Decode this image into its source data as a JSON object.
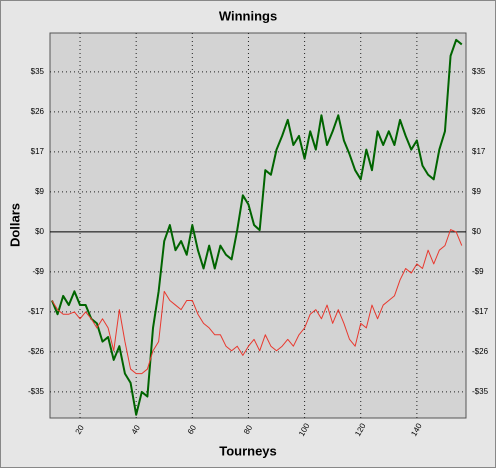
{
  "chart_data": {
    "type": "line",
    "title": "Winnings",
    "xlabel": "Tourneys",
    "ylabel": "Dollars",
    "x": [
      10,
      12,
      14,
      16,
      18,
      20,
      22,
      24,
      26,
      28,
      30,
      32,
      34,
      36,
      38,
      40,
      42,
      44,
      46,
      48,
      50,
      52,
      54,
      56,
      58,
      60,
      62,
      64,
      66,
      68,
      70,
      72,
      74,
      76,
      78,
      80,
      82,
      84,
      86,
      88,
      90,
      92,
      94,
      96,
      98,
      100,
      102,
      104,
      106,
      108,
      110,
      112,
      114,
      116,
      118,
      120,
      122,
      124,
      126,
      128,
      130,
      132,
      134,
      136,
      138,
      140,
      142,
      144,
      146,
      148,
      150,
      152,
      154,
      156
    ],
    "series": [
      {
        "color": "#006400",
        "width": 2,
        "values": [
          -15,
          -18,
          -14,
          -16,
          -13,
          -16,
          -16,
          -19,
          -20,
          -24,
          -23,
          -28,
          -25,
          -31,
          -33,
          -40,
          -35,
          -36,
          -21,
          -13,
          -2,
          1.5,
          -4,
          -2,
          -5,
          1.5,
          -4,
          -8,
          -3,
          -8,
          -3,
          -5,
          -6,
          0.4,
          8,
          6,
          1.5,
          0.4,
          13.5,
          12.5,
          18,
          21,
          24.5,
          19,
          21,
          16,
          22,
          18,
          25.5,
          19,
          22,
          25.5,
          20,
          17,
          13.5,
          11.5,
          18,
          13.5,
          22,
          19,
          22,
          19,
          24.5,
          21,
          18,
          20,
          14.5,
          12.5,
          11.5,
          18,
          22,
          38.5,
          42,
          41
        ]
      },
      {
        "color": "#e8392f",
        "width": 1,
        "values": [
          -15,
          -17,
          -18,
          -18,
          -17.5,
          -19,
          -17.5,
          -19,
          -21,
          -19,
          -21,
          -26,
          -17,
          -24,
          -30,
          -31,
          -31,
          -30,
          -26,
          -24,
          -13,
          -15,
          -16,
          -17,
          -15,
          -15,
          -18,
          -20,
          -21,
          -22.5,
          -22.5,
          -25,
          -26,
          -25,
          -27,
          -25,
          -23.5,
          -26,
          -22.5,
          -25,
          -26,
          -25,
          -23.5,
          -25,
          -22.5,
          -21,
          -18,
          -17,
          -19,
          -16,
          -20,
          -17,
          -20,
          -23.5,
          -25,
          -20,
          -21,
          -16,
          -19,
          -16,
          -15,
          -14,
          -10.5,
          -8,
          -9,
          -7,
          -8,
          -4,
          -7,
          -4,
          -3,
          0.5,
          0,
          -3
        ]
      }
    ],
    "xlim": [
      9.3,
      157.5
    ],
    "ylim": [
      -40.7,
      43.5
    ],
    "xticks": [
      20,
      40,
      60,
      80,
      100,
      120,
      140
    ],
    "yticks": [
      {
        "value": 35,
        "label": "$35"
      },
      {
        "value": 26.25,
        "label": "$26"
      },
      {
        "value": 17.5,
        "label": "$17"
      },
      {
        "value": 8.75,
        "label": "$9"
      },
      {
        "value": 0,
        "label": "$0"
      },
      {
        "value": -8.75,
        "label": "-$9"
      },
      {
        "value": -17.5,
        "label": "-$17"
      },
      {
        "value": -26.25,
        "label": "-$26"
      },
      {
        "value": -35,
        "label": "-$35"
      }
    ],
    "grid": true
  }
}
